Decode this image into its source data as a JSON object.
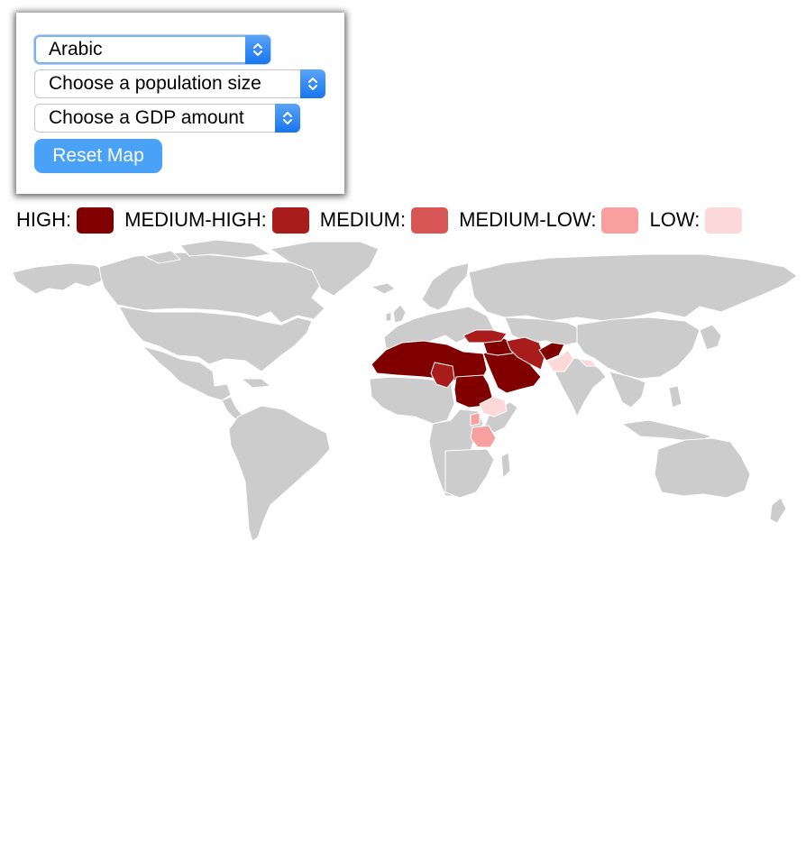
{
  "controls": {
    "language_select": {
      "value": "Arabic"
    },
    "population_select": {
      "value": "Choose a population size"
    },
    "gdp_select": {
      "value": "Choose a GDP amount"
    },
    "reset_button_label": "Reset Map"
  },
  "legend": {
    "items": [
      {
        "label": "HIGH:",
        "color": "#800000"
      },
      {
        "label": "MEDIUM-HIGH:",
        "color": "#a81c1c"
      },
      {
        "label": "MEDIUM:",
        "color": "#d85656"
      },
      {
        "label": "MEDIUM-LOW:",
        "color": "#f8a0a0"
      },
      {
        "label": "LOW:",
        "color": "#fcd8d8"
      }
    ]
  },
  "map": {
    "base_color": "#cccccc",
    "border_color": "#ffffff",
    "highlighted_regions": [
      {
        "name": "North Africa (Morocco, Algeria, Tunisia, Libya, Egypt)",
        "level": "HIGH"
      },
      {
        "name": "Sudan",
        "level": "HIGH"
      },
      {
        "name": "Saudi Arabia and Arabian Peninsula",
        "level": "HIGH"
      },
      {
        "name": "Iraq / Syria / Levant",
        "level": "HIGH"
      },
      {
        "name": "Afghanistan",
        "level": "HIGH"
      },
      {
        "name": "Iran",
        "level": "MEDIUM-HIGH"
      },
      {
        "name": "Turkey",
        "level": "MEDIUM-HIGH"
      },
      {
        "name": "Chad",
        "level": "MEDIUM-HIGH"
      },
      {
        "name": "Tanzania",
        "level": "MEDIUM-LOW"
      },
      {
        "name": "Uganda",
        "level": "MEDIUM-LOW"
      },
      {
        "name": "Ethiopia",
        "level": "LOW"
      },
      {
        "name": "Pakistan",
        "level": "LOW"
      },
      {
        "name": "Nepal",
        "level": "LOW"
      }
    ]
  }
}
